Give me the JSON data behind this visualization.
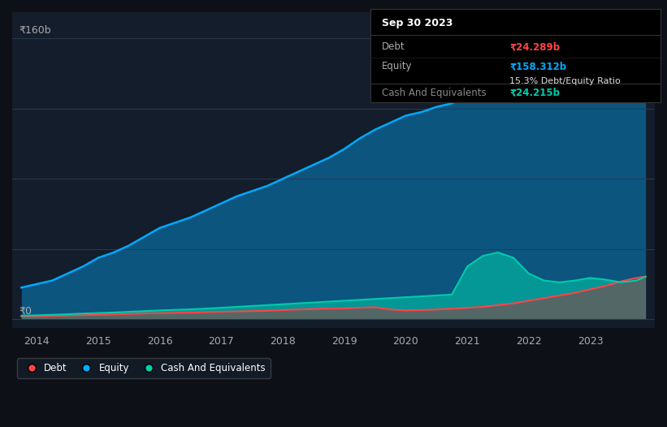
{
  "bg_color": "#0d1117",
  "plot_bg_color": "#141d2b",
  "ylabel_top": "₹160b",
  "ylabel_bottom": "₹0",
  "x_ticks": [
    2014,
    2015,
    2016,
    2017,
    2018,
    2019,
    2020,
    2021,
    2022,
    2023
  ],
  "tooltip": {
    "title": "Sep 30 2023",
    "debt_label": "Debt",
    "debt_value": "₹24.289b",
    "equity_label": "Equity",
    "equity_value": "₹158.312b",
    "ratio": "15.3% Debt/Equity Ratio",
    "cash_label": "Cash And Equivalents",
    "cash_value": "₹24.215b"
  },
  "legend": [
    {
      "label": "Debt",
      "color": "#ff4444"
    },
    {
      "label": "Equity",
      "color": "#00aaff"
    },
    {
      "label": "Cash And Equivalents",
      "color": "#00ccaa"
    }
  ],
  "years": [
    2013.75,
    2014.0,
    2014.25,
    2014.5,
    2014.75,
    2015.0,
    2015.25,
    2015.5,
    2015.75,
    2016.0,
    2016.25,
    2016.5,
    2016.75,
    2017.0,
    2017.25,
    2017.5,
    2017.75,
    2018.0,
    2018.25,
    2018.5,
    2018.75,
    2019.0,
    2019.25,
    2019.5,
    2019.75,
    2020.0,
    2020.25,
    2020.5,
    2020.75,
    2021.0,
    2021.25,
    2021.5,
    2021.75,
    2022.0,
    2022.25,
    2022.5,
    2022.75,
    2023.0,
    2023.25,
    2023.5,
    2023.75,
    2023.9
  ],
  "equity": [
    18,
    20,
    22,
    26,
    30,
    35,
    38,
    42,
    47,
    52,
    55,
    58,
    62,
    66,
    70,
    73,
    76,
    80,
    84,
    88,
    92,
    97,
    103,
    108,
    112,
    116,
    118,
    121,
    123,
    127,
    131,
    135,
    138,
    141,
    144,
    147,
    150,
    152,
    154,
    156,
    158,
    158.312
  ],
  "debt": [
    1.5,
    1.7,
    1.9,
    2.1,
    2.3,
    2.5,
    2.7,
    3.0,
    3.2,
    3.4,
    3.6,
    3.8,
    4.0,
    4.2,
    4.4,
    4.6,
    4.8,
    5.2,
    5.5,
    5.8,
    6.0,
    6.2,
    6.5,
    6.8,
    5.5,
    5.0,
    5.2,
    5.5,
    6.0,
    6.5,
    7.0,
    8.0,
    9.0,
    10.5,
    12.0,
    13.5,
    15.0,
    17.0,
    19.0,
    21.5,
    23.5,
    24.289
  ],
  "cash": [
    2.0,
    2.2,
    2.5,
    2.8,
    3.2,
    3.5,
    3.8,
    4.2,
    4.6,
    5.0,
    5.3,
    5.6,
    6.0,
    6.5,
    7.0,
    7.5,
    8.0,
    8.5,
    9.0,
    9.5,
    10.0,
    10.5,
    11.0,
    11.5,
    12.0,
    12.5,
    13.0,
    13.5,
    14.0,
    30.0,
    36.0,
    38.0,
    35.0,
    26.0,
    22.0,
    21.0,
    22.0,
    23.5,
    22.5,
    21.0,
    22.0,
    24.215
  ]
}
